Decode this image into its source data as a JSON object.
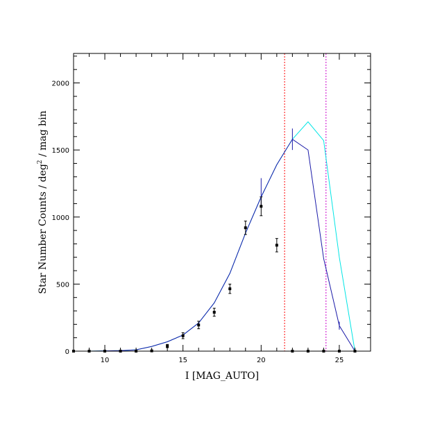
{
  "chart_data": {
    "type": "line",
    "title": "",
    "xlabel": "I [MAG_AUTO]",
    "ylabel": "Star Number Counts / deg",
    "ylabel_sup": "2",
    "ylabel_suffix": " / mag bin",
    "xlim": [
      8,
      27
    ],
    "ylim": [
      0,
      2220
    ],
    "x_major_ticks": [
      10,
      15,
      20,
      25
    ],
    "y_major_ticks": [
      0,
      500,
      1000,
      1500,
      2000
    ],
    "grid": false,
    "legend": "none",
    "series": [
      {
        "kind": "line",
        "color": "#00e5e5",
        "points": [
          [
            8,
            0
          ],
          [
            9,
            0
          ],
          [
            10,
            2
          ],
          [
            11,
            4
          ],
          [
            12,
            10
          ],
          [
            13,
            35
          ],
          [
            14,
            70
          ],
          [
            15,
            120
          ],
          [
            16,
            210
          ],
          [
            17,
            360
          ],
          [
            18,
            580
          ],
          [
            19,
            880
          ],
          [
            20,
            1150
          ],
          [
            21,
            1390
          ],
          [
            22,
            1580
          ],
          [
            23,
            1710
          ],
          [
            24,
            1570
          ],
          [
            25,
            700
          ],
          [
            26,
            0
          ]
        ]
      },
      {
        "kind": "line",
        "color": "#1a1aa8",
        "points": [
          [
            8,
            0
          ],
          [
            9,
            0
          ],
          [
            10,
            2
          ],
          [
            11,
            4
          ],
          [
            12,
            10
          ],
          [
            13,
            35
          ],
          [
            14,
            70
          ],
          [
            15,
            120
          ],
          [
            16,
            210
          ],
          [
            17,
            360
          ],
          [
            18,
            580
          ],
          [
            19,
            880
          ],
          [
            20,
            1150
          ],
          [
            21,
            1390
          ],
          [
            22,
            1580
          ],
          [
            23,
            1500
          ],
          [
            24,
            690
          ],
          [
            25,
            190
          ],
          [
            26,
            0
          ]
        ]
      },
      {
        "kind": "errorbar",
        "color": "#1a1aa8",
        "points": [
          [
            20,
            1180,
            110
          ],
          [
            22,
            1580,
            80
          ],
          [
            25,
            190,
            30
          ]
        ]
      },
      {
        "kind": "points",
        "color": "#000000",
        "points": [
          [
            8,
            0,
            0
          ],
          [
            9,
            0,
            0
          ],
          [
            10,
            0,
            0
          ],
          [
            11,
            0,
            0
          ],
          [
            12,
            0,
            0
          ],
          [
            13,
            2,
            3
          ],
          [
            14,
            38,
            12
          ],
          [
            15,
            115,
            22
          ],
          [
            16,
            195,
            28
          ],
          [
            17,
            290,
            30
          ],
          [
            18,
            465,
            35
          ],
          [
            19,
            920,
            50
          ],
          [
            20,
            1080,
            70
          ],
          [
            21,
            790,
            50
          ],
          [
            22,
            0,
            0
          ],
          [
            23,
            0,
            0
          ],
          [
            24,
            0,
            0
          ],
          [
            25,
            0,
            0
          ],
          [
            26,
            0,
            0
          ]
        ]
      }
    ],
    "vlines": [
      {
        "x": 21.5,
        "color": "#ff0000"
      },
      {
        "x": 24.15,
        "color": "#cc00cc"
      }
    ]
  }
}
